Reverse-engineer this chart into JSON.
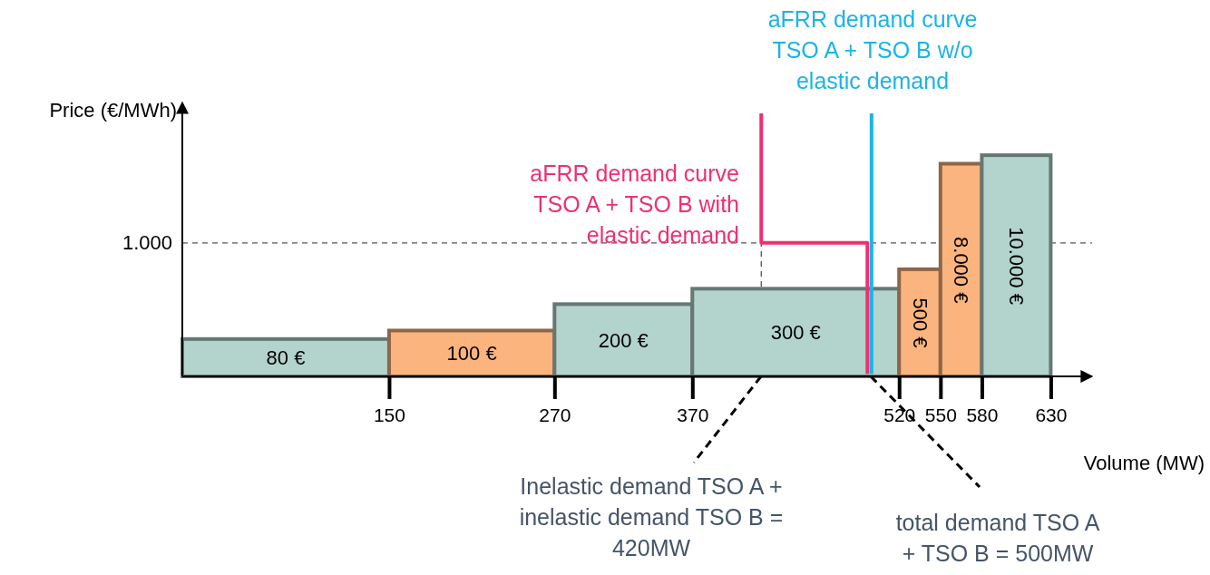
{
  "chart_data": {
    "type": "histogram",
    "log": "y",
    "ylim": [
      30,
      30000
    ],
    "xlabel": "Volume (MW)",
    "ylabel": "Price (€/MWh)",
    "bins": [
      0,
      150,
      270,
      370,
      520,
      550,
      580,
      630
    ],
    "xlim": [
      0,
      660
    ],
    "xticks": [
      150,
      270,
      370,
      520,
      550,
      580,
      630
    ],
    "series": [
      {
        "values": [
          80,
          100,
          200,
          300,
          500,
          8000,
          10000
        ],
        "colors": [
          "#b3d4cc",
          "#fbb47e",
          "#b3d4cc",
          "#b3d4cc",
          "#fbb47e",
          "#fbb47e",
          "#b3d4cc"
        ],
        "value_labels": [
          "80 €",
          "100 €",
          "200 €",
          "300 €",
          "500 €",
          "8.000 €",
          "10.000 €"
        ]
      },
      {
        "type": "line",
        "x": [
          420,
          420,
          497,
          497
        ],
        "values": [
          30000,
          1000,
          1000,
          32
        ],
        "color": "#f0306e"
      },
      {
        "type": "line",
        "x": [
          500,
          500
        ],
        "values": [
          30000,
          32
        ],
        "color": "#1ab4e8"
      }
    ],
    "ref_lines": [
      {
        "axis": "y",
        "value": 1000,
        "label": "1.000",
        "line_style": "dashed"
      },
      {
        "axis": "x",
        "value": 420,
        "label": null,
        "line_style": "dashed"
      }
    ],
    "annotations": [
      "aFRR demand curve\nTSO A + TSO B with\nelastic demand",
      "aFRR demand curve\nTSO A + TSO B w/o\nelastic demand",
      "Inelastic demand TSO A +\ninelastic demand TSO B =\n420MW",
      "total demand TSO A\n+ TSO B = 500MW"
    ]
  }
}
